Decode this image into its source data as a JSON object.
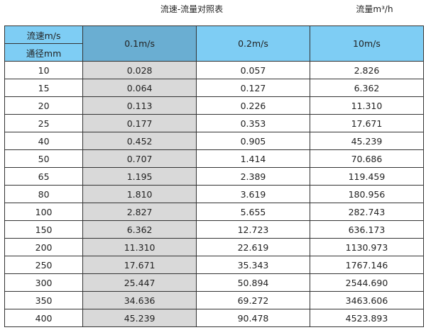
{
  "title": "流速-流量对照表",
  "unit_label": "流量m³/h",
  "table": {
    "corner_top": "流速m/s",
    "corner_bottom": "通径mm",
    "columns": [
      "0.1m/s",
      "0.2m/s",
      "10m/s"
    ],
    "rows": [
      [
        "10",
        "0.028",
        "0.057",
        "2.826"
      ],
      [
        "15",
        "0.064",
        "0.127",
        "6.362"
      ],
      [
        "20",
        "0.113",
        "0.226",
        "11.310"
      ],
      [
        "25",
        "0.177",
        "0.353",
        "17.671"
      ],
      [
        "40",
        "0.452",
        "0.905",
        "45.239"
      ],
      [
        "50",
        "0.707",
        "1.414",
        "70.686"
      ],
      [
        "65",
        "1.195",
        "2.389",
        "119.459"
      ],
      [
        "80",
        "1.810",
        "3.619",
        "180.956"
      ],
      [
        "100",
        "2.827",
        "5.655",
        "282.743"
      ],
      [
        "150",
        "6.362",
        "12.723",
        "636.173"
      ],
      [
        "200",
        "11.310",
        "22.619",
        "1130.973"
      ],
      [
        "250",
        "17.671",
        "35.343",
        "1767.146"
      ],
      [
        "300",
        "25.447",
        "50.894",
        "2544.690"
      ],
      [
        "350",
        "34.636",
        "69.272",
        "3463.606"
      ],
      [
        "400",
        "45.239",
        "90.478",
        "4523.893"
      ]
    ]
  },
  "colors": {
    "header": "#7ecdf4",
    "header_selected": "#6aaed2",
    "highlight_column": "#d9d9d9"
  }
}
